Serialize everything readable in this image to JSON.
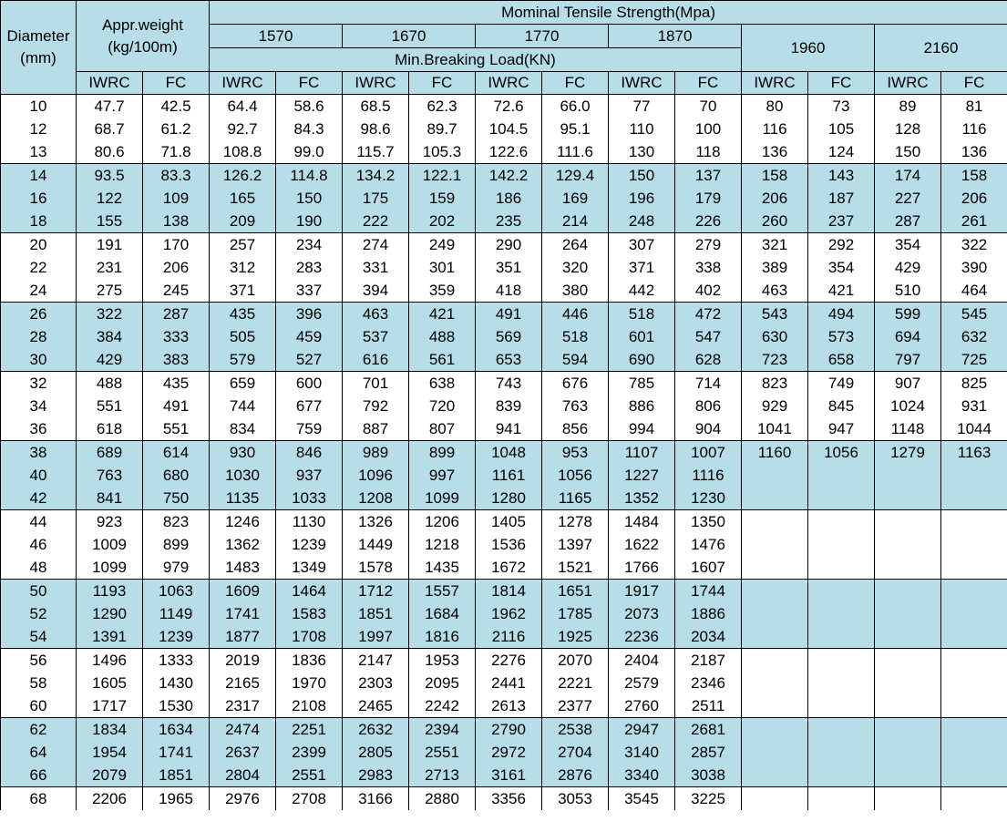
{
  "table": {
    "headers": {
      "diameter": [
        "Diameter",
        "(mm)"
      ],
      "weight": [
        "Appr.weight",
        "(kg/100m)"
      ],
      "strength_title": "Mominal Tensile Strength(Mpa)",
      "strengths": [
        "1570",
        "1670",
        "1770",
        "1870",
        "1960",
        "2160"
      ],
      "breaking_title": "Min.Breaking Load(KN)",
      "core_labels": [
        "IWRC",
        "FC",
        "IWRC",
        "FC",
        "IWRC",
        "FC",
        "IWRC",
        "FC",
        "IWRC",
        "FC",
        "IWRC",
        "FC",
        "IWRC",
        "FC"
      ]
    },
    "rows": [
      [
        "10",
        "47.7",
        "42.5",
        "64.4",
        "58.6",
        "68.5",
        "62.3",
        "72.6",
        "66.0",
        "77",
        "70",
        "80",
        "73",
        "89",
        "81"
      ],
      [
        "12",
        "68.7",
        "61.2",
        "92.7",
        "84.3",
        "98.6",
        "89.7",
        "104.5",
        "95.1",
        "110",
        "100",
        "116",
        "105",
        "128",
        "116"
      ],
      [
        "13",
        "80.6",
        "71.8",
        "108.8",
        "99.0",
        "115.7",
        "105.3",
        "122.6",
        "111.6",
        "130",
        "118",
        "136",
        "124",
        "150",
        "136"
      ],
      [
        "14",
        "93.5",
        "83.3",
        "126.2",
        "114.8",
        "134.2",
        "122.1",
        "142.2",
        "129.4",
        "150",
        "137",
        "158",
        "143",
        "174",
        "158"
      ],
      [
        "16",
        "122",
        "109",
        "165",
        "150",
        "175",
        "159",
        "186",
        "169",
        "196",
        "179",
        "206",
        "187",
        "227",
        "206"
      ],
      [
        "18",
        "155",
        "138",
        "209",
        "190",
        "222",
        "202",
        "235",
        "214",
        "248",
        "226",
        "260",
        "237",
        "287",
        "261"
      ],
      [
        "20",
        "191",
        "170",
        "257",
        "234",
        "274",
        "249",
        "290",
        "264",
        "307",
        "279",
        "321",
        "292",
        "354",
        "322"
      ],
      [
        "22",
        "231",
        "206",
        "312",
        "283",
        "331",
        "301",
        "351",
        "320",
        "371",
        "338",
        "389",
        "354",
        "429",
        "390"
      ],
      [
        "24",
        "275",
        "245",
        "371",
        "337",
        "394",
        "359",
        "418",
        "380",
        "442",
        "402",
        "463",
        "421",
        "510",
        "464"
      ],
      [
        "26",
        "322",
        "287",
        "435",
        "396",
        "463",
        "421",
        "491",
        "446",
        "518",
        "472",
        "543",
        "494",
        "599",
        "545"
      ],
      [
        "28",
        "384",
        "333",
        "505",
        "459",
        "537",
        "488",
        "569",
        "518",
        "601",
        "547",
        "630",
        "573",
        "694",
        "632"
      ],
      [
        "30",
        "429",
        "383",
        "579",
        "527",
        "616",
        "561",
        "653",
        "594",
        "690",
        "628",
        "723",
        "658",
        "797",
        "725"
      ],
      [
        "32",
        "488",
        "435",
        "659",
        "600",
        "701",
        "638",
        "743",
        "676",
        "785",
        "714",
        "823",
        "749",
        "907",
        "825"
      ],
      [
        "34",
        "551",
        "491",
        "744",
        "677",
        "792",
        "720",
        "839",
        "763",
        "886",
        "806",
        "929",
        "845",
        "1024",
        "931"
      ],
      [
        "36",
        "618",
        "551",
        "834",
        "759",
        "887",
        "807",
        "941",
        "856",
        "994",
        "904",
        "1041",
        "947",
        "1148",
        "1044"
      ],
      [
        "38",
        "689",
        "614",
        "930",
        "846",
        "989",
        "899",
        "1048",
        "953",
        "1107",
        "1007",
        "1160",
        "1056",
        "1279",
        "1163"
      ],
      [
        "40",
        "763",
        "680",
        "1030",
        "937",
        "1096",
        "997",
        "1161",
        "1056",
        "1227",
        "1116",
        "",
        "",
        "",
        ""
      ],
      [
        "42",
        "841",
        "750",
        "1135",
        "1033",
        "1208",
        "1099",
        "1280",
        "1165",
        "1352",
        "1230",
        "",
        "",
        "",
        ""
      ],
      [
        "44",
        "923",
        "823",
        "1246",
        "1130",
        "1326",
        "1206",
        "1405",
        "1278",
        "1484",
        "1350",
        "",
        "",
        "",
        ""
      ],
      [
        "46",
        "1009",
        "899",
        "1362",
        "1239",
        "1449",
        "1218",
        "1536",
        "1397",
        "1622",
        "1476",
        "",
        "",
        "",
        ""
      ],
      [
        "48",
        "1099",
        "979",
        "1483",
        "1349",
        "1578",
        "1435",
        "1672",
        "1521",
        "1766",
        "1607",
        "",
        "",
        "",
        ""
      ],
      [
        "50",
        "1193",
        "1063",
        "1609",
        "1464",
        "1712",
        "1557",
        "1814",
        "1651",
        "1917",
        "1744",
        "",
        "",
        "",
        ""
      ],
      [
        "52",
        "1290",
        "1149",
        "1741",
        "1583",
        "1851",
        "1684",
        "1962",
        "1785",
        "2073",
        "1886",
        "",
        "",
        "",
        ""
      ],
      [
        "54",
        "1391",
        "1239",
        "1877",
        "1708",
        "1997",
        "1816",
        "2116",
        "1925",
        "2236",
        "2034",
        "",
        "",
        "",
        ""
      ],
      [
        "56",
        "1496",
        "1333",
        "2019",
        "1836",
        "2147",
        "1953",
        "2276",
        "2070",
        "2404",
        "2187",
        "",
        "",
        "",
        ""
      ],
      [
        "58",
        "1605",
        "1430",
        "2165",
        "1970",
        "2303",
        "2095",
        "2441",
        "2221",
        "2579",
        "2346",
        "",
        "",
        "",
        ""
      ],
      [
        "60",
        "1717",
        "1530",
        "2317",
        "2108",
        "2465",
        "2242",
        "2613",
        "2377",
        "2760",
        "2511",
        "",
        "",
        "",
        ""
      ],
      [
        "62",
        "1834",
        "1634",
        "2474",
        "2251",
        "2632",
        "2394",
        "2790",
        "2538",
        "2947",
        "2681",
        "",
        "",
        "",
        ""
      ],
      [
        "64",
        "1954",
        "1741",
        "2637",
        "2399",
        "2805",
        "2551",
        "2972",
        "2704",
        "3140",
        "2857",
        "",
        "",
        "",
        ""
      ],
      [
        "66",
        "2079",
        "1851",
        "2804",
        "2551",
        "2983",
        "2713",
        "3161",
        "2876",
        "3340",
        "3038",
        "",
        "",
        "",
        ""
      ],
      [
        "68",
        "2206",
        "1965",
        "2976",
        "2708",
        "3166",
        "2880",
        "3356",
        "3053",
        "3545",
        "3225",
        "",
        "",
        "",
        ""
      ]
    ]
  }
}
